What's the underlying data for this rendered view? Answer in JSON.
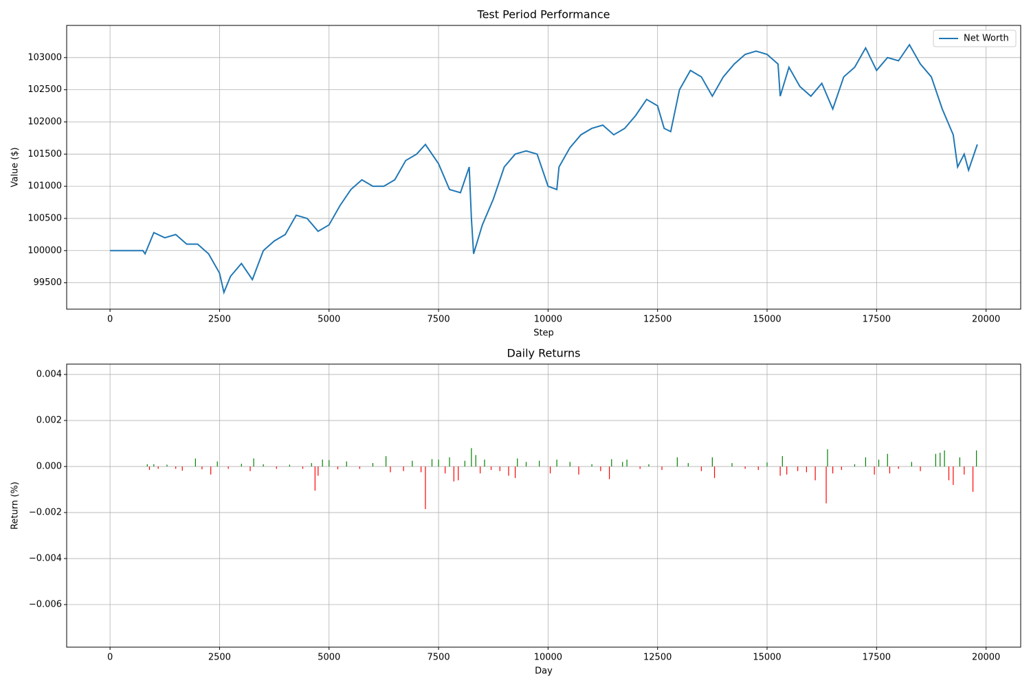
{
  "chart_data": [
    {
      "type": "line",
      "title": "Test Period Performance",
      "xlabel": "Step",
      "ylabel": "Value ($)",
      "xlim": [
        -990,
        20790
      ],
      "ylim": [
        99090,
        103500
      ],
      "xticks": [
        0,
        2500,
        5000,
        7500,
        10000,
        12500,
        15000,
        17500,
        20000
      ],
      "yticks": [
        99500,
        100000,
        100500,
        101000,
        101500,
        102000,
        102500,
        103000
      ],
      "grid": true,
      "legend": "upper right",
      "x": [
        0,
        750,
        800,
        1000,
        1250,
        1500,
        1750,
        2000,
        2250,
        2500,
        2600,
        2750,
        3000,
        3250,
        3500,
        3750,
        4000,
        4250,
        4500,
        4750,
        5000,
        5250,
        5500,
        5750,
        6000,
        6250,
        6500,
        6750,
        7000,
        7200,
        7500,
        7750,
        8000,
        8200,
        8250,
        8300,
        8500,
        8750,
        9000,
        9250,
        9500,
        9750,
        10000,
        10200,
        10250,
        10500,
        10750,
        11000,
        11250,
        11500,
        11750,
        12000,
        12250,
        12500,
        12650,
        12800,
        13000,
        13250,
        13500,
        13750,
        14000,
        14250,
        14500,
        14750,
        15000,
        15250,
        15300,
        15500,
        15750,
        16000,
        16250,
        16500,
        16750,
        17000,
        17250,
        17500,
        17750,
        18000,
        18250,
        18500,
        18750,
        19000,
        19250,
        19350,
        19500,
        19600,
        19750,
        19800
      ],
      "series": [
        {
          "name": "Net Worth",
          "color": "#1f77b4",
          "values": [
            100000,
            100000,
            99950,
            100280,
            100200,
            100250,
            100100,
            100100,
            99950,
            99650,
            99350,
            99600,
            99800,
            99550,
            100000,
            100150,
            100250,
            100550,
            100500,
            100300,
            100400,
            100700,
            100950,
            101100,
            101000,
            101000,
            101100,
            101400,
            101500,
            101650,
            101350,
            100950,
            100900,
            101300,
            100500,
            99950,
            100400,
            100800,
            101300,
            101500,
            101550,
            101500,
            101000,
            100950,
            101300,
            101600,
            101800,
            101900,
            101950,
            101800,
            101900,
            102100,
            102350,
            102250,
            101900,
            101850,
            102500,
            102800,
            102700,
            102400,
            102700,
            102900,
            103050,
            103100,
            103050,
            102900,
            102400,
            102850,
            102550,
            102400,
            102600,
            102200,
            102700,
            102850,
            103150,
            102800,
            103000,
            102950,
            103200,
            102900,
            102700,
            102200,
            101800,
            101300,
            101500,
            101250,
            101550,
            101650
          ]
        }
      ]
    },
    {
      "type": "bar",
      "title": "Daily Returns",
      "xlabel": "Day",
      "ylabel": "Return (%)",
      "xlim": [
        -990,
        20790
      ],
      "ylim": [
        -0.00785,
        0.00445
      ],
      "xticks": [
        0,
        2500,
        5000,
        7500,
        10000,
        12500,
        15000,
        17500,
        20000
      ],
      "yticks": [
        {
          "value": -0.006,
          "label": "−0.006"
        },
        {
          "value": -0.004,
          "label": "−0.004"
        },
        {
          "value": -0.002,
          "label": "−0.002"
        },
        {
          "value": 0,
          "label": "0.000"
        },
        0.002,
        0.004
      ],
      "grid": true,
      "pos_color": "green",
      "neg_color": "red",
      "x": [
        850,
        900,
        1000,
        1100,
        1300,
        1500,
        1650,
        1950,
        2100,
        2300,
        2450,
        2700,
        3000,
        3200,
        3280,
        3500,
        3800,
        4100,
        4400,
        4600,
        4680,
        4750,
        4850,
        5000,
        5200,
        5400,
        5700,
        6000,
        6300,
        6400,
        6700,
        6900,
        7100,
        7200,
        7350,
        7500,
        7650,
        7750,
        7850,
        7950,
        8100,
        8250,
        8350,
        8450,
        8550,
        8700,
        8900,
        9100,
        9250,
        9300,
        9500,
        9800,
        10050,
        10200,
        10500,
        10700,
        11000,
        11200,
        11400,
        11450,
        11700,
        11800,
        12100,
        12300,
        12600,
        12950,
        13200,
        13500,
        13750,
        13800,
        14200,
        14500,
        14800,
        15000,
        15300,
        15350,
        15450,
        15700,
        15900,
        16100,
        16350,
        16380,
        16500,
        16700,
        17000,
        17250,
        17450,
        17550,
        17750,
        17800,
        18000,
        18300,
        18500,
        18850,
        18950,
        19050,
        19150,
        19250,
        19400,
        19500,
        19700,
        19780
      ],
      "values": [
        0.0001,
        -0.00015,
        0.0001,
        -0.0001,
        8e-05,
        -0.0001,
        -0.00018,
        0.00035,
        -0.00012,
        -0.00035,
        0.00022,
        -0.0001,
        0.00012,
        -0.0002,
        0.00035,
        0.0001,
        -0.0001,
        8e-05,
        -0.0001,
        0.00015,
        -0.00105,
        -0.0004,
        0.0003,
        0.00028,
        -0.00012,
        0.00022,
        -0.0001,
        0.00015,
        0.00045,
        -0.00025,
        -0.0002,
        0.00025,
        -0.00025,
        -0.00185,
        0.00032,
        0.0003,
        -0.0003,
        0.0004,
        -0.00065,
        -0.0006,
        0.00025,
        0.0008,
        0.0005,
        -0.0003,
        0.0003,
        -0.00015,
        -0.0002,
        -0.0004,
        -0.0005,
        0.00035,
        0.0002,
        0.00025,
        -0.0003,
        0.0003,
        0.0002,
        -0.00035,
        0.0001,
        -0.0002,
        -0.00055,
        0.00032,
        0.0002,
        0.0003,
        -0.0001,
        0.0001,
        -0.00015,
        0.0004,
        0.00015,
        -0.0002,
        0.0004,
        -0.0005,
        0.00015,
        -0.0001,
        -0.00015,
        0.00018,
        -0.0004,
        0.00045,
        -0.00035,
        -0.0002,
        -0.00025,
        -0.0006,
        -0.0016,
        0.00075,
        -0.0003,
        -0.00015,
        0.0001,
        0.0004,
        -0.00035,
        0.0003,
        0.00055,
        -0.0003,
        -0.0001,
        0.0002,
        -0.0002,
        0.00055,
        0.0006,
        0.0007,
        -0.0006,
        -0.0008,
        0.0004,
        -0.00035,
        -0.0011,
        0.0007
      ]
    }
  ]
}
